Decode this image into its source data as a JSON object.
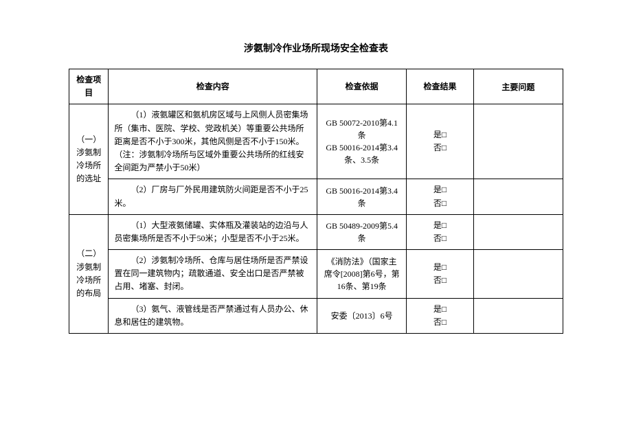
{
  "title": "涉氨制冷作业场所现场安全检查表",
  "headers": {
    "item": "检查项目",
    "content": "检查内容",
    "basis": "检查依据",
    "result": "检查结果",
    "issues": "主要问题"
  },
  "sections": [
    {
      "label": "（一）涉氨制冷场所的选址",
      "rows": [
        {
          "content": "（1）液氨罐区和氨机房区域与上风侧人员密集场所（集市、医院、学校、党政机关）等重要公共场所距离是否不小于300米，其他风侧是否不小于150米。（注：涉氨制冷场所与区域外重要公共场所的红线安全间距为严禁小于50米）",
          "basis": "GB 50072-2010第4.1条\nGB 50016-2014第3.4条、3.5条",
          "result": "是□\n否□",
          "issues": ""
        },
        {
          "content": "（2）厂房与厂外民用建筑防火间距是否不小于25米。",
          "basis": "GB 50016-2014第3.4条",
          "result": "是□\n否□",
          "issues": ""
        }
      ]
    },
    {
      "label": "（二）涉氨制冷场所的布局",
      "rows": [
        {
          "content": "（1）大型液氨储罐、实体瓶及灌装站的边沿与人员密集场所是否不小于50米；小型是否不小于25米。",
          "basis": "GB 50489-2009第5.4条",
          "result": "是□\n否□",
          "issues": ""
        },
        {
          "content": "（2）涉氨制冷场所、仓库与居住场所是否严禁设置在同一建筑物内；疏散通道、安全出口是否严禁被占用、堵塞、封闭。",
          "basis": "《消防法》（国家主席令[2008]第6号，第16条、第19条",
          "result": "是□\n否□",
          "issues": ""
        },
        {
          "content": "（3）氨气、液管线是否严禁通过有人员办公、休息和居住的建筑物。",
          "basis": "安委〔2013〕6号",
          "result": "是□\n否□",
          "issues": ""
        }
      ]
    }
  ]
}
